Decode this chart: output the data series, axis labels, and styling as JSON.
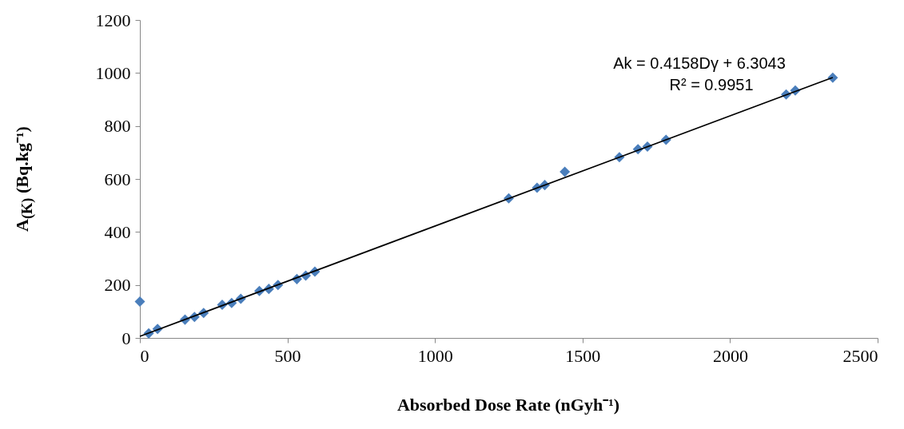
{
  "chart_data": {
    "type": "scatter",
    "xlabel": "Absorbed Dose Rate (nGyh⁻¹)",
    "ylabel": "A$_{(K)}$ (Bq.kg⁻¹)",
    "xlim": [
      0,
      2500
    ],
    "xticks": [
      0,
      500,
      1000,
      1500,
      2000,
      2500
    ],
    "ylim": [
      0,
      1200
    ],
    "yticks": [
      0,
      200,
      400,
      600,
      800,
      1000,
      1200
    ],
    "grid": false,
    "marker": "diamond",
    "annotations": [
      "Ak = 0.4158Dγ + 6.3043",
      "R² = 0.9951"
    ],
    "series": [
      {
        "color": "#4a7ebb",
        "x": [
          0,
          30,
          60,
          153,
          185,
          216,
          279,
          311,
          342,
          405,
          437,
          468,
          532,
          562,
          593,
          1250,
          1346,
          1372,
          1440,
          1625,
          1688,
          1720,
          1783,
          2190,
          2221,
          2348
        ],
        "values": [
          137,
          17,
          34,
          69,
          79,
          94,
          125,
          132,
          148,
          177,
          185,
          200,
          222,
          235,
          250,
          527,
          567,
          577,
          627,
          682,
          712,
          722,
          748,
          919,
          934,
          982
        ]
      },
      {
        "type": "line",
        "color": "#000000",
        "line_style": "solid",
        "marker": "none",
        "x": [
          0,
          2348
        ],
        "values": [
          6,
          983
        ]
      }
    ]
  }
}
